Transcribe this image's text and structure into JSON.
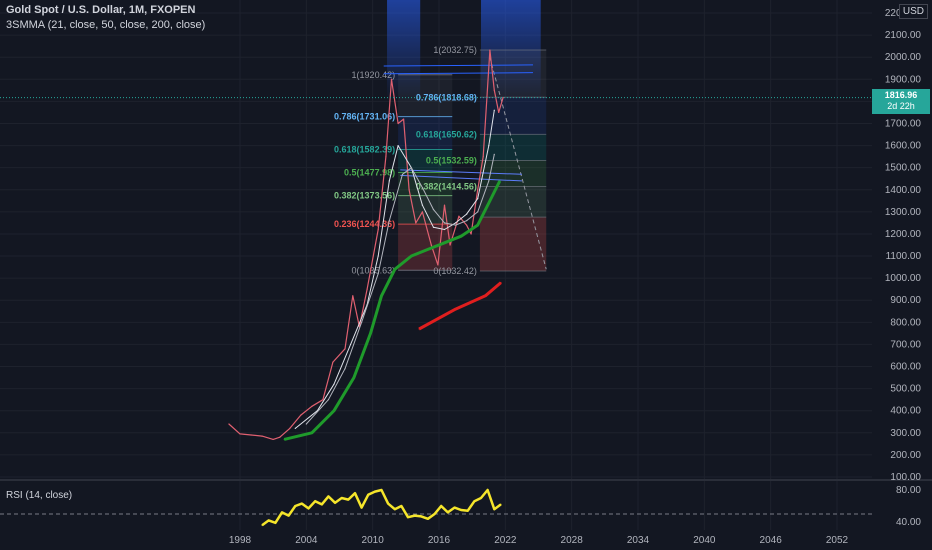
{
  "header": {
    "title": "Gold Spot / U.S. Dollar, 1M, FXOPEN",
    "indicator": "3SMMA (21, close, 50, close, 200, close)",
    "currency": "USD",
    "currency_marker": "0"
  },
  "price_tag": {
    "value": "1816.96",
    "countdown": "2d 22h"
  },
  "rsi_label": "RSI (14, close)",
  "colors": {
    "background": "#131722",
    "smma_200": "#1f9b2b",
    "annotation_line": "#e01e1e",
    "rsi": "#f5e52b",
    "fib_0786_text": "#64b5f6",
    "fib_0618_text": "#26a69a",
    "fib_05_text": "#4caf50",
    "fib_0382_text": "#81c784",
    "fib_0236_text": "#ef5350"
  },
  "chart_data": [
    {
      "type": "line",
      "title": "Gold Spot / U.S. Dollar, 1M, FXOPEN",
      "xlabel": "",
      "ylabel": "",
      "ylim": [
        100,
        2200
      ],
      "y_ticks": [
        "100.00",
        "200.00",
        "300.00",
        "400.00",
        "500.00",
        "600.00",
        "700.00",
        "800.00",
        "900.00",
        "1000.00",
        "1100.00",
        "1200.00",
        "1300.00",
        "1400.00",
        "1500.00",
        "1600.00",
        "1700.00",
        "1800.00",
        "1900.00",
        "2000.00",
        "2100.00",
        "2200.00"
      ],
      "x_ticks": [
        "1998",
        "2004",
        "2010",
        "2016",
        "2022",
        "2028",
        "2034",
        "2040",
        "2046",
        "2052"
      ],
      "x_tick_years": [
        1998,
        2004,
        2010,
        2016,
        2022,
        2028,
        2034,
        2040,
        2046,
        2052
      ],
      "xlim": [
        1997.3,
        2056.0
      ],
      "grid": true,
      "series": [
        {
          "kind": "price",
          "x": [
            1997.0,
            1998.0,
            1999.0,
            2000.0,
            2001.0,
            2001.6,
            2002.5,
            2003.5,
            2004.5,
            2005.5,
            2006.4,
            2007.5,
            2008.2,
            2008.8,
            2009.5,
            2010.5,
            2011.2,
            2011.7,
            2012.3,
            2012.8,
            2013.3,
            2013.9,
            2014.5,
            2015.3,
            2015.9,
            2016.5,
            2017.0,
            2017.8,
            2018.5,
            2018.9,
            2019.5,
            2020.0,
            2020.6,
            2021.0,
            2021.4,
            2021.8
          ],
          "values": [
            340,
            295,
            290,
            285,
            270,
            280,
            320,
            380,
            420,
            450,
            620,
            680,
            920,
            780,
            950,
            1220,
            1550,
            1900,
            1700,
            1720,
            1400,
            1250,
            1300,
            1150,
            1060,
            1330,
            1150,
            1280,
            1240,
            1200,
            1400,
            1550,
            2032,
            1850,
            1750,
            1817
          ]
        },
        {
          "kind": "smma_21",
          "x": [
            2003.0,
            2005.0,
            2006.5,
            2008.0,
            2009.5,
            2010.5,
            2011.5,
            2012.3,
            2013.5,
            2014.5,
            2015.5,
            2016.5,
            2017.5,
            2018.5,
            2019.5,
            2020.5,
            2021.0
          ],
          "values": [
            320,
            400,
            520,
            700,
            880,
            1100,
            1440,
            1600,
            1500,
            1330,
            1230,
            1220,
            1250,
            1290,
            1360,
            1600,
            1760
          ]
        },
        {
          "kind": "smma_50",
          "x": [
            2004.0,
            2006.0,
            2007.5,
            2009.0,
            2010.5,
            2011.5,
            2012.7,
            2013.5,
            2014.5,
            2015.5,
            2016.5,
            2017.5,
            2018.5,
            2019.5,
            2020.5,
            2021.0
          ],
          "values": [
            340,
            450,
            590,
            800,
            1020,
            1260,
            1470,
            1500,
            1410,
            1310,
            1250,
            1240,
            1260,
            1300,
            1440,
            1560
          ]
        },
        {
          "kind": "smma_200",
          "x": [
            2002.0,
            2004.5,
            2006.5,
            2008.3,
            2009.8,
            2010.8,
            2012.0,
            2013.5,
            2015.0,
            2016.5,
            2018.0,
            2019.5,
            2020.5,
            2021.5
          ],
          "values": [
            270,
            300,
            400,
            550,
            750,
            920,
            1040,
            1100,
            1130,
            1160,
            1190,
            1240,
            1340,
            1440
          ]
        },
        {
          "kind": "annotation",
          "x": [
            2014.2,
            2017.5,
            2020.2,
            2021.6
          ],
          "values": [
            770,
            860,
            920,
            980
          ]
        }
      ],
      "fibonacci_left": [
        {
          "label": "1(1920.42)",
          "level": 1920.42
        },
        {
          "label": "0.786(1731.06)",
          "level": 1731.06
        },
        {
          "label": "0.618(1582.39)",
          "level": 1582.39
        },
        {
          "label": "0.5(1477.98)",
          "level": 1477.98
        },
        {
          "label": "0.382(1373.56)",
          "level": 1373.56
        },
        {
          "label": "0.236(1244.36)",
          "level": 1244.36
        },
        {
          "label": "0(1035.63)",
          "level": 1035.63
        }
      ],
      "fibonacci_right": [
        {
          "label": "1(2032.75)",
          "level": 2032.75
        },
        {
          "label": "0.786(1818.68)",
          "level": 1818.68
        },
        {
          "label": "0.618(1650.62)",
          "level": 1650.62
        },
        {
          "label": "0.5(1532.59)",
          "level": 1532.59
        },
        {
          "label": "0.382(1414.56)",
          "level": 1414.56
        },
        {
          "label": "0(1032.42)",
          "level": 1032.42
        }
      ],
      "current_price": 1816.96
    },
    {
      "type": "line",
      "title": "RSI (14, close)",
      "ylim": [
        30,
        90
      ],
      "y_ticks": [
        "80.00",
        "40.00"
      ],
      "x": [
        2000.0,
        2000.6,
        2001.2,
        2001.8,
        2002.4,
        2003.0,
        2003.6,
        2004.2,
        2004.8,
        2005.4,
        2006.0,
        2006.6,
        2007.2,
        2007.8,
        2008.4,
        2009.0,
        2009.6,
        2010.2,
        2010.8,
        2011.4,
        2012.0,
        2012.6,
        2013.2,
        2013.8,
        2014.4,
        2015.0,
        2015.6,
        2016.2,
        2016.8,
        2017.4,
        2018.0,
        2018.6,
        2019.2,
        2019.8,
        2020.4,
        2021.0,
        2021.6
      ],
      "values": [
        36,
        42,
        39,
        52,
        48,
        60,
        63,
        57,
        66,
        62,
        72,
        64,
        70,
        68,
        76,
        58,
        74,
        78,
        80,
        63,
        56,
        60,
        46,
        48,
        47,
        44,
        50,
        60,
        52,
        58,
        55,
        54,
        66,
        70,
        80,
        56,
        62
      ]
    }
  ]
}
